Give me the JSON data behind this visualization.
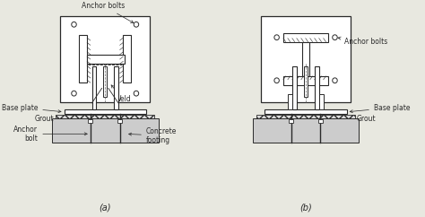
{
  "bg_color": "#f5f5f0",
  "line_color": "#2a2a2a",
  "hatch_color": "#555555",
  "fig_bg": "#e8e8e0",
  "label_fontsize": 5.5,
  "title_fontsize": 7,
  "sub_labels": [
    "(a)",
    "(b)"
  ],
  "annotations_a": {
    "anchor_bolts": "Anchor bolts",
    "weld": "Weld",
    "base_plate": "Base plate",
    "anchor_bolt_side": "Anchor\nbolt",
    "grout": "Grout",
    "concrete_footing": "Concrete\nfooting"
  },
  "annotations_b": {
    "anchor_bolts": "Anchor bolts",
    "base_plate": "Base plate",
    "grout": "Grout"
  }
}
